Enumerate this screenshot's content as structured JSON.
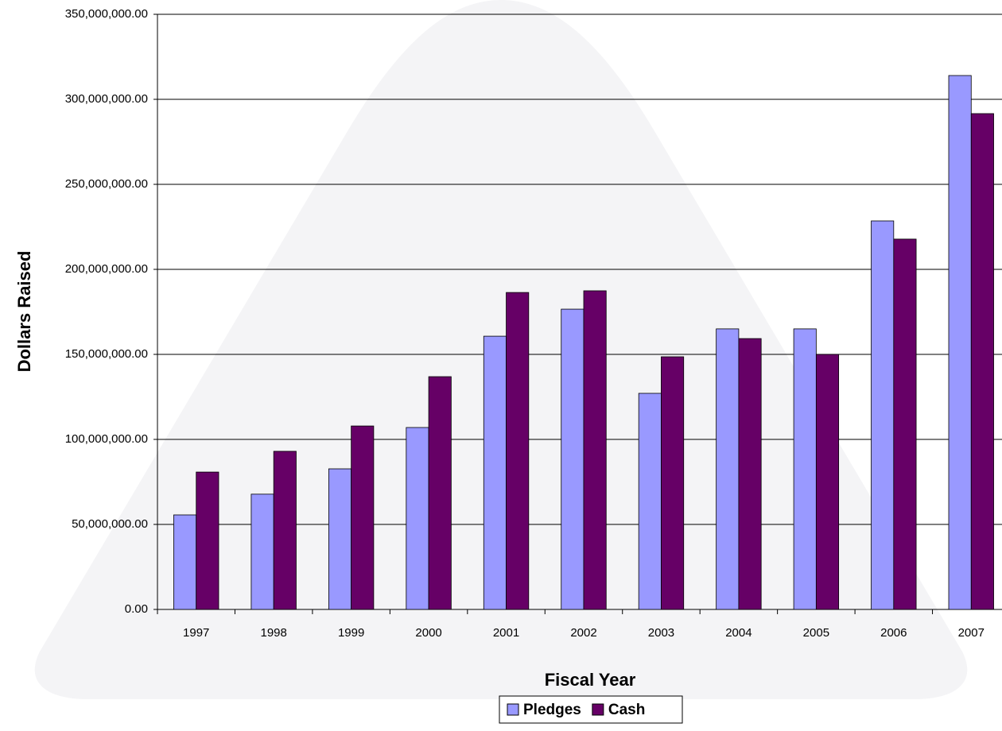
{
  "chart_data": {
    "type": "bar",
    "x_label": "Fiscal Year",
    "y_label": "Dollars Raised",
    "categories": [
      "1997",
      "1998",
      "1999",
      "2000",
      "2001",
      "2002",
      "2003",
      "2004",
      "2005",
      "2006",
      "2007"
    ],
    "series": [
      {
        "name": "Pledges",
        "color": "#9999ff",
        "values": [
          55600000,
          67800000,
          82700000,
          107000000,
          160700000,
          176600000,
          127100000,
          165000000,
          165000000,
          228500000,
          314000000
        ]
      },
      {
        "name": "Cash",
        "color": "#660066",
        "values": [
          80800000,
          93000000,
          107900000,
          136900000,
          186400000,
          187400000,
          148600000,
          159300000,
          150000000,
          217800000,
          291600000
        ]
      }
    ],
    "ylim": [
      0,
      350000000
    ],
    "yticks": [
      {
        "value": 0,
        "label": "0.00"
      },
      {
        "value": 50000000,
        "label": "50,000,000.00"
      },
      {
        "value": 100000000,
        "label": "100,000,000.00"
      },
      {
        "value": 150000000,
        "label": "150,000,000.00"
      },
      {
        "value": 200000000,
        "label": "200,000,000.00"
      },
      {
        "value": 250000000,
        "label": "250,000,000.00"
      },
      {
        "value": 300000000,
        "label": "300,000,000.00"
      },
      {
        "value": 350000000,
        "label": "350,000,000.00"
      }
    ],
    "grid": true,
    "legend": "bottom"
  }
}
